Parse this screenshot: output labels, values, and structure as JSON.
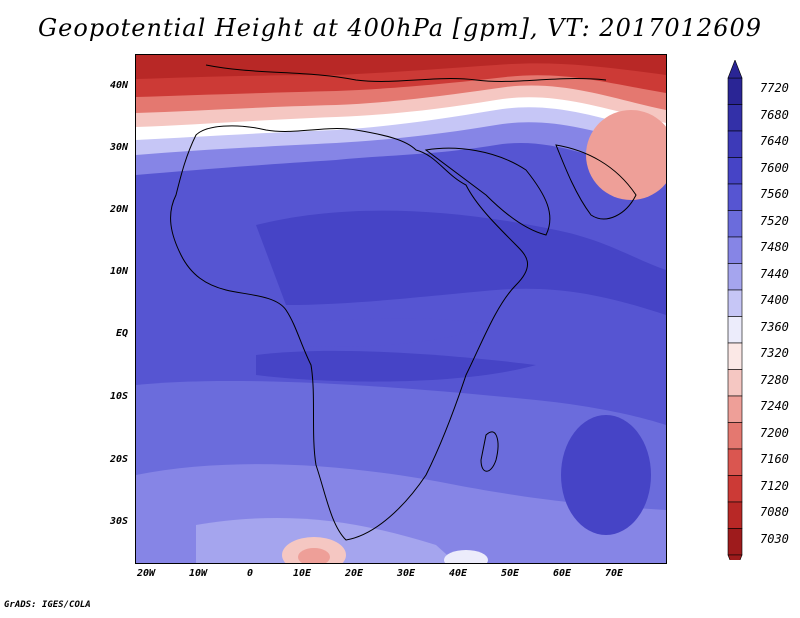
{
  "title": "Geopotential Height at 400hPa [gpm], VT: 2017012609",
  "footer": "GrADS: IGES/COLA",
  "map": {
    "y_labels": [
      "40N",
      "30N",
      "20N",
      "10N",
      "EQ",
      "10S",
      "20S",
      "30S"
    ],
    "x_labels": [
      "20W",
      "10W",
      "0",
      "10E",
      "20E",
      "30E",
      "40E",
      "50E",
      "60E",
      "70E"
    ]
  },
  "colorbar": {
    "labels": [
      "7720",
      "7680",
      "7640",
      "7600",
      "7560",
      "7520",
      "7480",
      "7440",
      "7400",
      "7360",
      "7320",
      "7280",
      "7240",
      "7200",
      "7160",
      "7120",
      "7080",
      "7030"
    ],
    "colors": [
      "#2a2595",
      "#3330a8",
      "#3d3ab8",
      "#4644c6",
      "#5655d2",
      "#6b6cdc",
      "#8685e6",
      "#a5a5ee",
      "#c6c6f6",
      "#ececfb",
      "#fbe8e6",
      "#f5c7c2",
      "#ee9f98",
      "#e47870",
      "#da5650",
      "#cc3a36",
      "#b82826",
      "#9e1b1c"
    ]
  }
}
